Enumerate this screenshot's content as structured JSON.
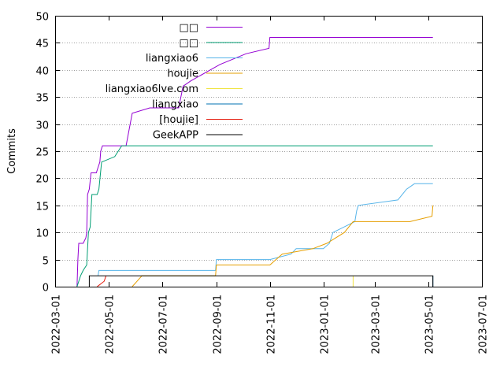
{
  "chart_data": {
    "type": "line",
    "title": "",
    "xlabel": "",
    "ylabel": "Commits",
    "ylim": [
      0,
      50
    ],
    "xlim": [
      "2022-03-01",
      "2023-07-01"
    ],
    "y_ticks": [
      0,
      5,
      10,
      15,
      20,
      25,
      30,
      35,
      40,
      45,
      50
    ],
    "x_ticks": [
      "2022-03-01",
      "2022-05-01",
      "2022-07-01",
      "2022-09-01",
      "2022-11-01",
      "2023-01-01",
      "2023-03-01",
      "2023-05-01",
      "2023-07-01"
    ],
    "grid": "horizontal dotted",
    "legend_position": "top-center",
    "series": [
      {
        "name": "□□",
        "color": "#9400d3",
        "points": [
          [
            "2022-03-26",
            0
          ],
          [
            "2022-03-27",
            5
          ],
          [
            "2022-03-28",
            8
          ],
          [
            "2022-04-02",
            8
          ],
          [
            "2022-04-05",
            9
          ],
          [
            "2022-04-06",
            10
          ],
          [
            "2022-04-07",
            17
          ],
          [
            "2022-04-09",
            18
          ],
          [
            "2022-04-11",
            21
          ],
          [
            "2022-04-17",
            21
          ],
          [
            "2022-04-19",
            22
          ],
          [
            "2022-04-21",
            23
          ],
          [
            "2022-04-22",
            25
          ],
          [
            "2022-04-24",
            26
          ],
          [
            "2022-05-21",
            26
          ],
          [
            "2022-05-28",
            32
          ],
          [
            "2022-06-17",
            33
          ],
          [
            "2022-07-20",
            33
          ],
          [
            "2022-07-25",
            37
          ],
          [
            "2022-08-03",
            38
          ],
          [
            "2022-08-25",
            40
          ],
          [
            "2022-09-05",
            41
          ],
          [
            "2022-10-05",
            43
          ],
          [
            "2022-10-31",
            44
          ],
          [
            "2022-11-01",
            46
          ],
          [
            "2023-05-06",
            46
          ]
        ]
      },
      {
        "name": "□□",
        "color": "#009e73",
        "points": [
          [
            "2022-03-26",
            0
          ],
          [
            "2022-03-30",
            2
          ],
          [
            "2022-04-02",
            3
          ],
          [
            "2022-04-06",
            4
          ],
          [
            "2022-04-08",
            10
          ],
          [
            "2022-04-10",
            11
          ],
          [
            "2022-04-12",
            17
          ],
          [
            "2022-04-18",
            17
          ],
          [
            "2022-04-20",
            18
          ],
          [
            "2022-04-23",
            23
          ],
          [
            "2022-05-08",
            24
          ],
          [
            "2022-05-12",
            25
          ],
          [
            "2022-05-16",
            26
          ],
          [
            "2023-05-06",
            26
          ]
        ]
      },
      {
        "name": "liangxiao6",
        "color": "#56b4e9",
        "points": [
          [
            "2022-04-19",
            2
          ],
          [
            "2022-04-20",
            3
          ],
          [
            "2022-08-31",
            3
          ],
          [
            "2022-09-01",
            5
          ],
          [
            "2022-11-01",
            5
          ],
          [
            "2022-11-25",
            6
          ],
          [
            "2022-12-01",
            7
          ],
          [
            "2023-01-01",
            7
          ],
          [
            "2023-01-08",
            8
          ],
          [
            "2023-01-12",
            10
          ],
          [
            "2023-02-06",
            12
          ],
          [
            "2023-02-08",
            14
          ],
          [
            "2023-02-10",
            15
          ],
          [
            "2023-03-27",
            16
          ],
          [
            "2023-04-06",
            18
          ],
          [
            "2023-04-15",
            19
          ],
          [
            "2023-05-06",
            19
          ]
        ]
      },
      {
        "name": "houjie",
        "color": "#e69f00",
        "points": [
          [
            "2022-05-28",
            0
          ],
          [
            "2022-06-08",
            2
          ],
          [
            "2022-08-31",
            2
          ],
          [
            "2022-09-01",
            4
          ],
          [
            "2022-11-01",
            4
          ],
          [
            "2022-11-15",
            6
          ],
          [
            "2022-12-20",
            7
          ],
          [
            "2023-01-05",
            8
          ],
          [
            "2023-01-25",
            10
          ],
          [
            "2023-02-04",
            12
          ],
          [
            "2023-04-10",
            12
          ],
          [
            "2023-05-05",
            13
          ],
          [
            "2023-05-06",
            15
          ]
        ]
      },
      {
        "name": "liangxiao6lve.com",
        "color": "#f0e442",
        "points": [
          [
            "2023-02-04",
            0
          ],
          [
            "2023-02-04",
            2
          ]
        ]
      },
      {
        "name": "liangxiao",
        "color": "#0072b2",
        "points": [
          [
            "2023-05-06",
            0
          ],
          [
            "2023-05-06",
            2
          ]
        ]
      },
      {
        "name": "[houjie]",
        "color": "#e51e10",
        "points": [
          [
            "2022-04-18",
            0
          ],
          [
            "2022-04-26",
            1
          ],
          [
            "2022-04-28",
            2
          ]
        ]
      },
      {
        "name": "GeekAPP",
        "color": "#000000",
        "points": [
          [
            "2022-04-09",
            0
          ],
          [
            "2022-04-09",
            2
          ],
          [
            "2023-05-06",
            2
          ],
          [
            "2023-05-06",
            0
          ]
        ]
      }
    ]
  }
}
